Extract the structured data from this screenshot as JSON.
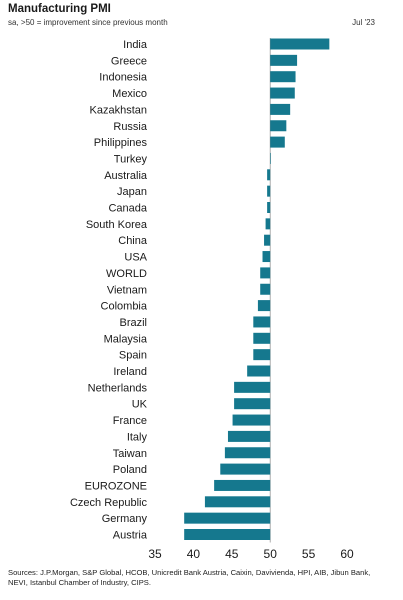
{
  "chart_data": {
    "type": "bar",
    "orientation": "horizontal",
    "title": "Manufacturing PMI",
    "subtitle": "sa, >50 = improvement since previous month",
    "date_label": "Jul '23",
    "baseline": 50,
    "xlim": [
      35,
      60
    ],
    "xticks": [
      "35",
      "40",
      "45",
      "50",
      "55",
      "60"
    ],
    "bar_color": "#15788e",
    "categories": [
      "India",
      "Greece",
      "Indonesia",
      "Mexico",
      "Kazakhstan",
      "Russia",
      "Philippines",
      "Turkey",
      "Australia",
      "Japan",
      "Canada",
      "South Korea",
      "China",
      "USA",
      "WORLD",
      "Vietnam",
      "Colombia",
      "Brazil",
      "Malaysia",
      "Spain",
      "Ireland",
      "Netherlands",
      "UK",
      "France",
      "Italy",
      "Taiwan",
      "Poland",
      "EUROZONE",
      "Czech Republic",
      "Germany",
      "Austria"
    ],
    "values": [
      57.7,
      53.5,
      53.3,
      53.2,
      52.6,
      52.1,
      51.9,
      50.0,
      49.6,
      49.6,
      49.6,
      49.4,
      49.2,
      49.0,
      48.7,
      48.7,
      48.4,
      47.8,
      47.8,
      47.8,
      47.0,
      45.3,
      45.3,
      45.1,
      44.5,
      44.1,
      43.5,
      42.7,
      41.5,
      38.8,
      38.8
    ]
  },
  "sources": "Sources: J.P.Morgan, S&P Global, HCOB, Unicredit Bank Austria, Caixin, Davivienda, HPI, AIB, Jibun Bank, NEVI, Istanbul Chamber of Industry, CIPS."
}
